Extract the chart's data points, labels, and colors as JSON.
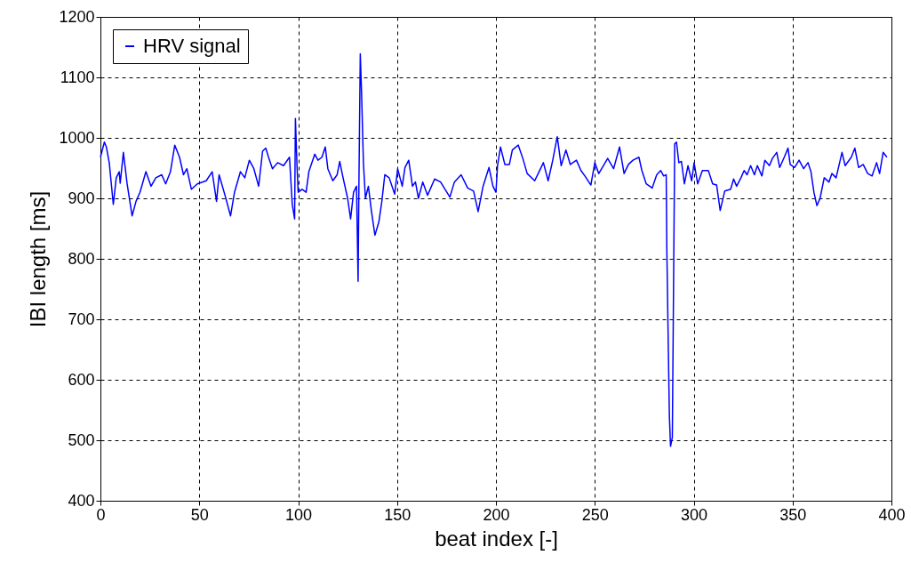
{
  "chart_data": {
    "type": "line",
    "xlabel": "beat index [-]",
    "ylabel": "IBI length [ms]",
    "xlim": [
      0,
      400
    ],
    "xticks": [
      0,
      50,
      100,
      150,
      200,
      250,
      300,
      350,
      400
    ],
    "ylim": [
      400,
      1200
    ],
    "yticks": [
      400,
      500,
      600,
      700,
      800,
      900,
      1000,
      1100,
      1200
    ],
    "grid": true,
    "legend": "top left",
    "line_style": "solid",
    "series": [
      {
        "name": "HRV signal",
        "color": "#0000ff",
        "x": [
          0,
          2,
          3,
          4.5,
          6.5,
          8,
          9.5,
          10,
          11.6,
          13.5,
          16,
          18,
          20,
          23,
          25.6,
          28,
          31,
          33,
          35.4,
          37.6,
          40,
          42,
          43.7,
          46,
          49,
          53.5,
          56.5,
          58.7,
          60,
          63,
          65.8,
          67.8,
          70.8,
          73,
          75.3,
          77.6,
          80,
          82,
          83.6,
          85,
          87,
          89.6,
          92.6,
          95.6,
          97,
          98.2,
          98.6,
          99.4,
          100,
          102,
          104,
          105.4,
          108.4,
          110,
          112,
          113.7,
          115,
          117.5,
          119.7,
          121,
          122.7,
          125,
          126.5,
          128,
          129.5,
          130.3,
          130.7,
          131.4,
          132,
          133,
          134,
          135.5,
          137,
          138.8,
          140.8,
          142.3,
          143.8,
          146,
          148.8,
          150.3,
          152.6,
          154,
          155.9,
          157.8,
          159.3,
          160.8,
          163,
          165.4,
          169,
          172,
          176.7,
          179,
          182.4,
          185.7,
          188.7,
          191,
          193.5,
          196.5,
          198.5,
          200,
          200.8,
          202.3,
          204.5,
          206.8,
          208.3,
          211.3,
          213.6,
          215.8,
          219.6,
          221.8,
          224,
          226.4,
          228.6,
          231,
          233,
          235.4,
          237.6,
          240.7,
          243,
          245,
          248,
          250,
          252,
          256.5,
          259.5,
          262.5,
          264.8,
          267,
          269.3,
          272.3,
          273.8,
          276,
          279,
          281.3,
          283.3,
          284.8,
          286.1,
          286.4,
          287.2,
          287.7,
          288.3,
          289.2,
          289.8,
          290.4,
          291.3,
          292.5,
          293.8,
          295.3,
          297.1,
          299,
          300.2,
          302,
          304.4,
          307.4,
          309.6,
          311.6,
          313.4,
          315.7,
          318.7,
          320.2,
          321.7,
          323.9,
          325.5,
          327,
          328.8,
          330.7,
          332.2,
          334.5,
          336,
          338.3,
          339.8,
          342,
          343.5,
          345.8,
          347.7,
          348.8,
          351,
          353.3,
          355.6,
          357.8,
          359.3,
          360.8,
          362.3,
          363.9,
          366,
          368.4,
          369.9,
          372,
          375,
          376.6,
          379.7,
          381.5,
          383.4,
          385.7,
          388,
          390.2,
          392.5,
          394,
          395.8,
          397.7
        ],
        "values": [
          968,
          993,
          985,
          958,
          890,
          934,
          944,
          925,
          976,
          924,
          871,
          895,
          910,
          944,
          920,
          934,
          939,
          924,
          944,
          988,
          968,
          939,
          949,
          915,
          924,
          929,
          944,
          895,
          939,
          905,
          871,
          910,
          944,
          934,
          963,
          949,
          920,
          978,
          983,
          968,
          949,
          959,
          954,
          968,
          890,
          866,
          1032,
          954,
          910,
          915,
          910,
          944,
          973,
          963,
          968,
          985,
          949,
          929,
          939,
          961,
          934,
          900,
          866,
          910,
          920,
          763,
          920,
          1139,
          1080,
          958,
          900,
          920,
          880,
          839,
          861,
          895,
          939,
          934,
          907,
          949,
          920,
          951,
          963,
          920,
          927,
          900,
          927,
          905,
          932,
          927,
          902,
          927,
          939,
          917,
          912,
          878,
          920,
          951,
          920,
          910,
          954,
          985,
          956,
          956,
          980,
          988,
          966,
          941,
          929,
          944,
          959,
          929,
          961,
          1002,
          954,
          980,
          956,
          963,
          946,
          937,
          922,
          959,
          941,
          966,
          949,
          985,
          941,
          956,
          963,
          968,
          946,
          924,
          917,
          939,
          946,
          937,
          939,
          820,
          646,
          541,
          490,
          505,
          749,
          990,
          993,
          959,
          961,
          924,
          954,
          929,
          959,
          924,
          946,
          946,
          924,
          922,
          880,
          912,
          915,
          932,
          920,
          934,
          946,
          939,
          954,
          939,
          954,
          937,
          963,
          954,
          966,
          976,
          951,
          968,
          983,
          956,
          951,
          963,
          949,
          959,
          944,
          910,
          888,
          900,
          934,
          927,
          941,
          934,
          976,
          954,
          968,
          983,
          951,
          956,
          941,
          937,
          959,
          941,
          976,
          968
        ]
      }
    ]
  }
}
